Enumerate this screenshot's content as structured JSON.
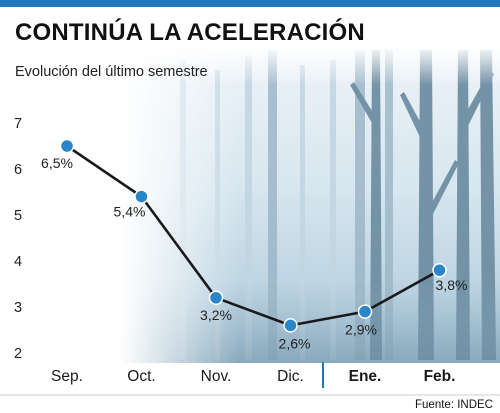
{
  "header": {
    "title": "CONTINÚA LA ACELERACIÓN",
    "subtitle": "Evolución del último semestre"
  },
  "source": "Fuente: INDEC",
  "colors": {
    "accent_bar": "#1f77bc",
    "line": "#1a1a1a",
    "marker": "#2a86c9",
    "separator": "#1f77bc",
    "fog": "#a9c9dc",
    "trees": "#6f8fa3"
  },
  "chart_data": {
    "type": "line",
    "title": "CONTINÚA LA ACELERACIÓN",
    "subtitle": "Evolución del último semestre",
    "xlabel": "",
    "ylabel": "",
    "categories": [
      "Sep.",
      "Oct.",
      "Nov.",
      "Dic.",
      "Ene.",
      "Feb."
    ],
    "bold_categories": [
      "Ene.",
      "Feb."
    ],
    "series": [
      {
        "values": [
          6.5,
          5.4,
          3.2,
          2.6,
          2.9,
          3.8
        ],
        "labels": [
          "6,5%",
          "5,4%",
          "3,2%",
          "2,6%",
          "2,9%",
          "3,8%"
        ]
      }
    ],
    "yticks": [
      "2",
      "3",
      "4",
      "5",
      "6",
      "7"
    ],
    "ylim": [
      2,
      7
    ],
    "grid": false,
    "legend": "none"
  }
}
